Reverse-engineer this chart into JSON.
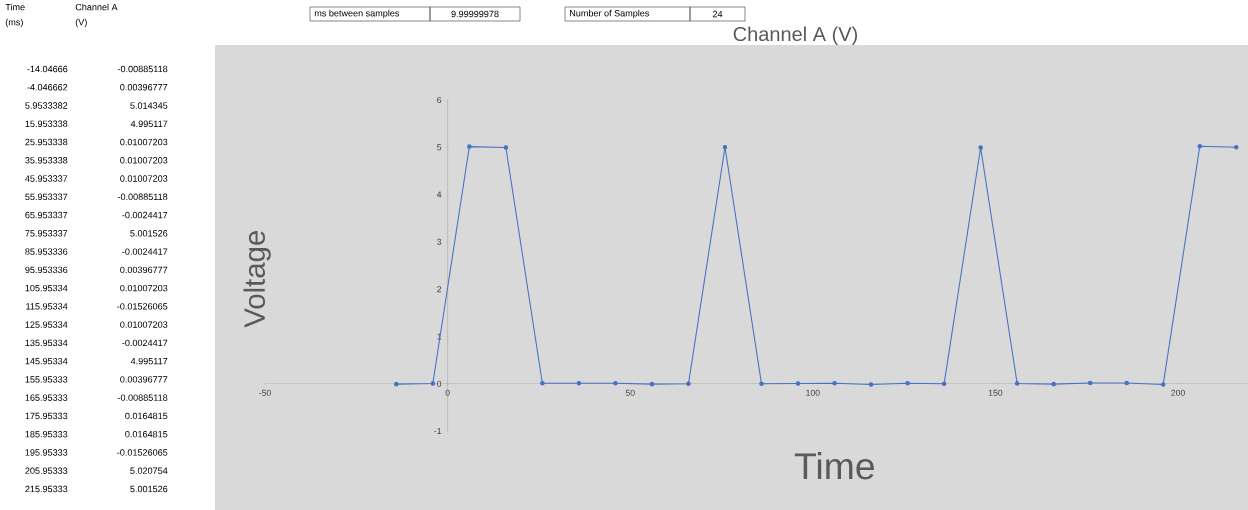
{
  "chart_data": {
    "type": "line",
    "title": "Channel A (V)",
    "xlabel": "Time",
    "ylabel": "Voltage",
    "annotations": [
      "Time",
      "(ms)",
      "Channel A",
      "(V)",
      "ms between samples",
      "9.99999978",
      "Number of Samples",
      "24",
      "-14.04666",
      "-0.00885118",
      "-4.046662",
      "0.00396777",
      "5.9533382",
      "5.014345",
      "15.953338",
      "4.995117",
      "25.953338",
      "0.01007203",
      "35.953338",
      "0.01007203",
      "45.953337",
      "0.01007203",
      "55.953337",
      "-0.00885118",
      "65.953337",
      "-0.0024417",
      "75.953337",
      "5.001526",
      "85.953336",
      "-0.0024417",
      "95.953336",
      "0.00396777",
      "105.95334",
      "0.01007203",
      "115.95334",
      "-0.01526065",
      "125.95334",
      "0.01007203",
      "135.95334",
      "-0.0024417",
      "145.95334",
      "4.995117",
      "155.95333",
      "0.00396777",
      "165.95333",
      "-0.00885118",
      "175.95333",
      "0.0164815",
      "185.95333",
      "0.0164815",
      "195.95333",
      "-0.01526065",
      "205.95333",
      "5.020754",
      "215.95333",
      "5.001526"
    ],
    "x": [
      -14.04666,
      -4.046662,
      5.9533382,
      15.953338,
      25.953338,
      35.953338,
      45.953337,
      55.953337,
      65.953337,
      75.953337,
      85.953336,
      95.953336,
      105.95334,
      115.95334,
      125.95334,
      135.95334,
      145.95334,
      155.95333,
      165.95333,
      175.95333,
      185.95333,
      195.95333,
      205.95333,
      215.95333
    ],
    "series": [
      {
        "color": "#4472c4",
        "values": [
          -0.00885118,
          0.00396777,
          5.014345,
          4.995117,
          0.01007203,
          0.01007203,
          0.01007203,
          -0.00885118,
          -0.0024417,
          5.001526,
          -0.0024417,
          0.00396777,
          0.01007203,
          -0.01526065,
          0.01007203,
          -0.0024417,
          4.995117,
          0.00396777,
          -0.00885118,
          0.0164815,
          0.0164815,
          -0.01526065,
          5.020754,
          5.001526
        ]
      }
    ],
    "marker": "circle",
    "line_style": "solid",
    "xlim": [
      -50,
      219
    ],
    "ylim": [
      -1,
      6
    ],
    "xticks": [
      -50,
      0,
      50,
      100,
      150,
      200
    ],
    "yticks": [
      -1,
      0,
      1,
      2,
      3,
      4,
      5,
      6
    ]
  }
}
